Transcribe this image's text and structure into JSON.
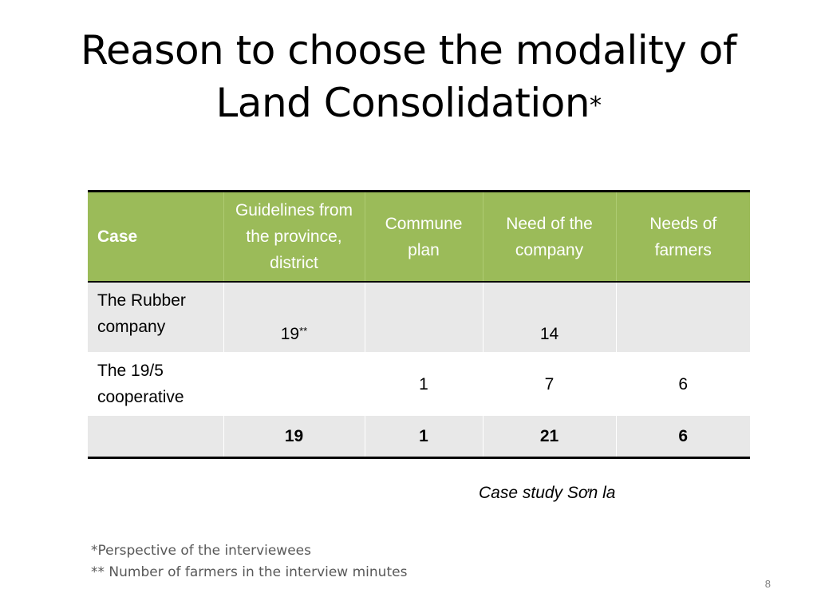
{
  "title": {
    "line1": "Reason to choose the modality of",
    "line2": "Land Consolidation",
    "mark": "*"
  },
  "table": {
    "headers": [
      "Case",
      "Guidelines from the province, district",
      "Commune plan",
      "Need of the company",
      "Needs of farmers"
    ],
    "rows": [
      {
        "case": "The Rubber company",
        "guidelines": "19",
        "guidelines_mark": "**",
        "commune": "",
        "company": "14",
        "farmers": ""
      },
      {
        "case": "The 19/5 cooperative",
        "guidelines": "",
        "guidelines_mark": "",
        "commune": "1",
        "company": "7",
        "farmers": "6"
      }
    ],
    "total": {
      "case": "",
      "guidelines": "19",
      "commune": "1",
      "company": "21",
      "farmers": "6"
    }
  },
  "source": "Case study Sơn la",
  "footnotes": [
    "*Perspective of the interviewees",
    "** Number of farmers in the interview minutes"
  ],
  "page_number": "8"
}
